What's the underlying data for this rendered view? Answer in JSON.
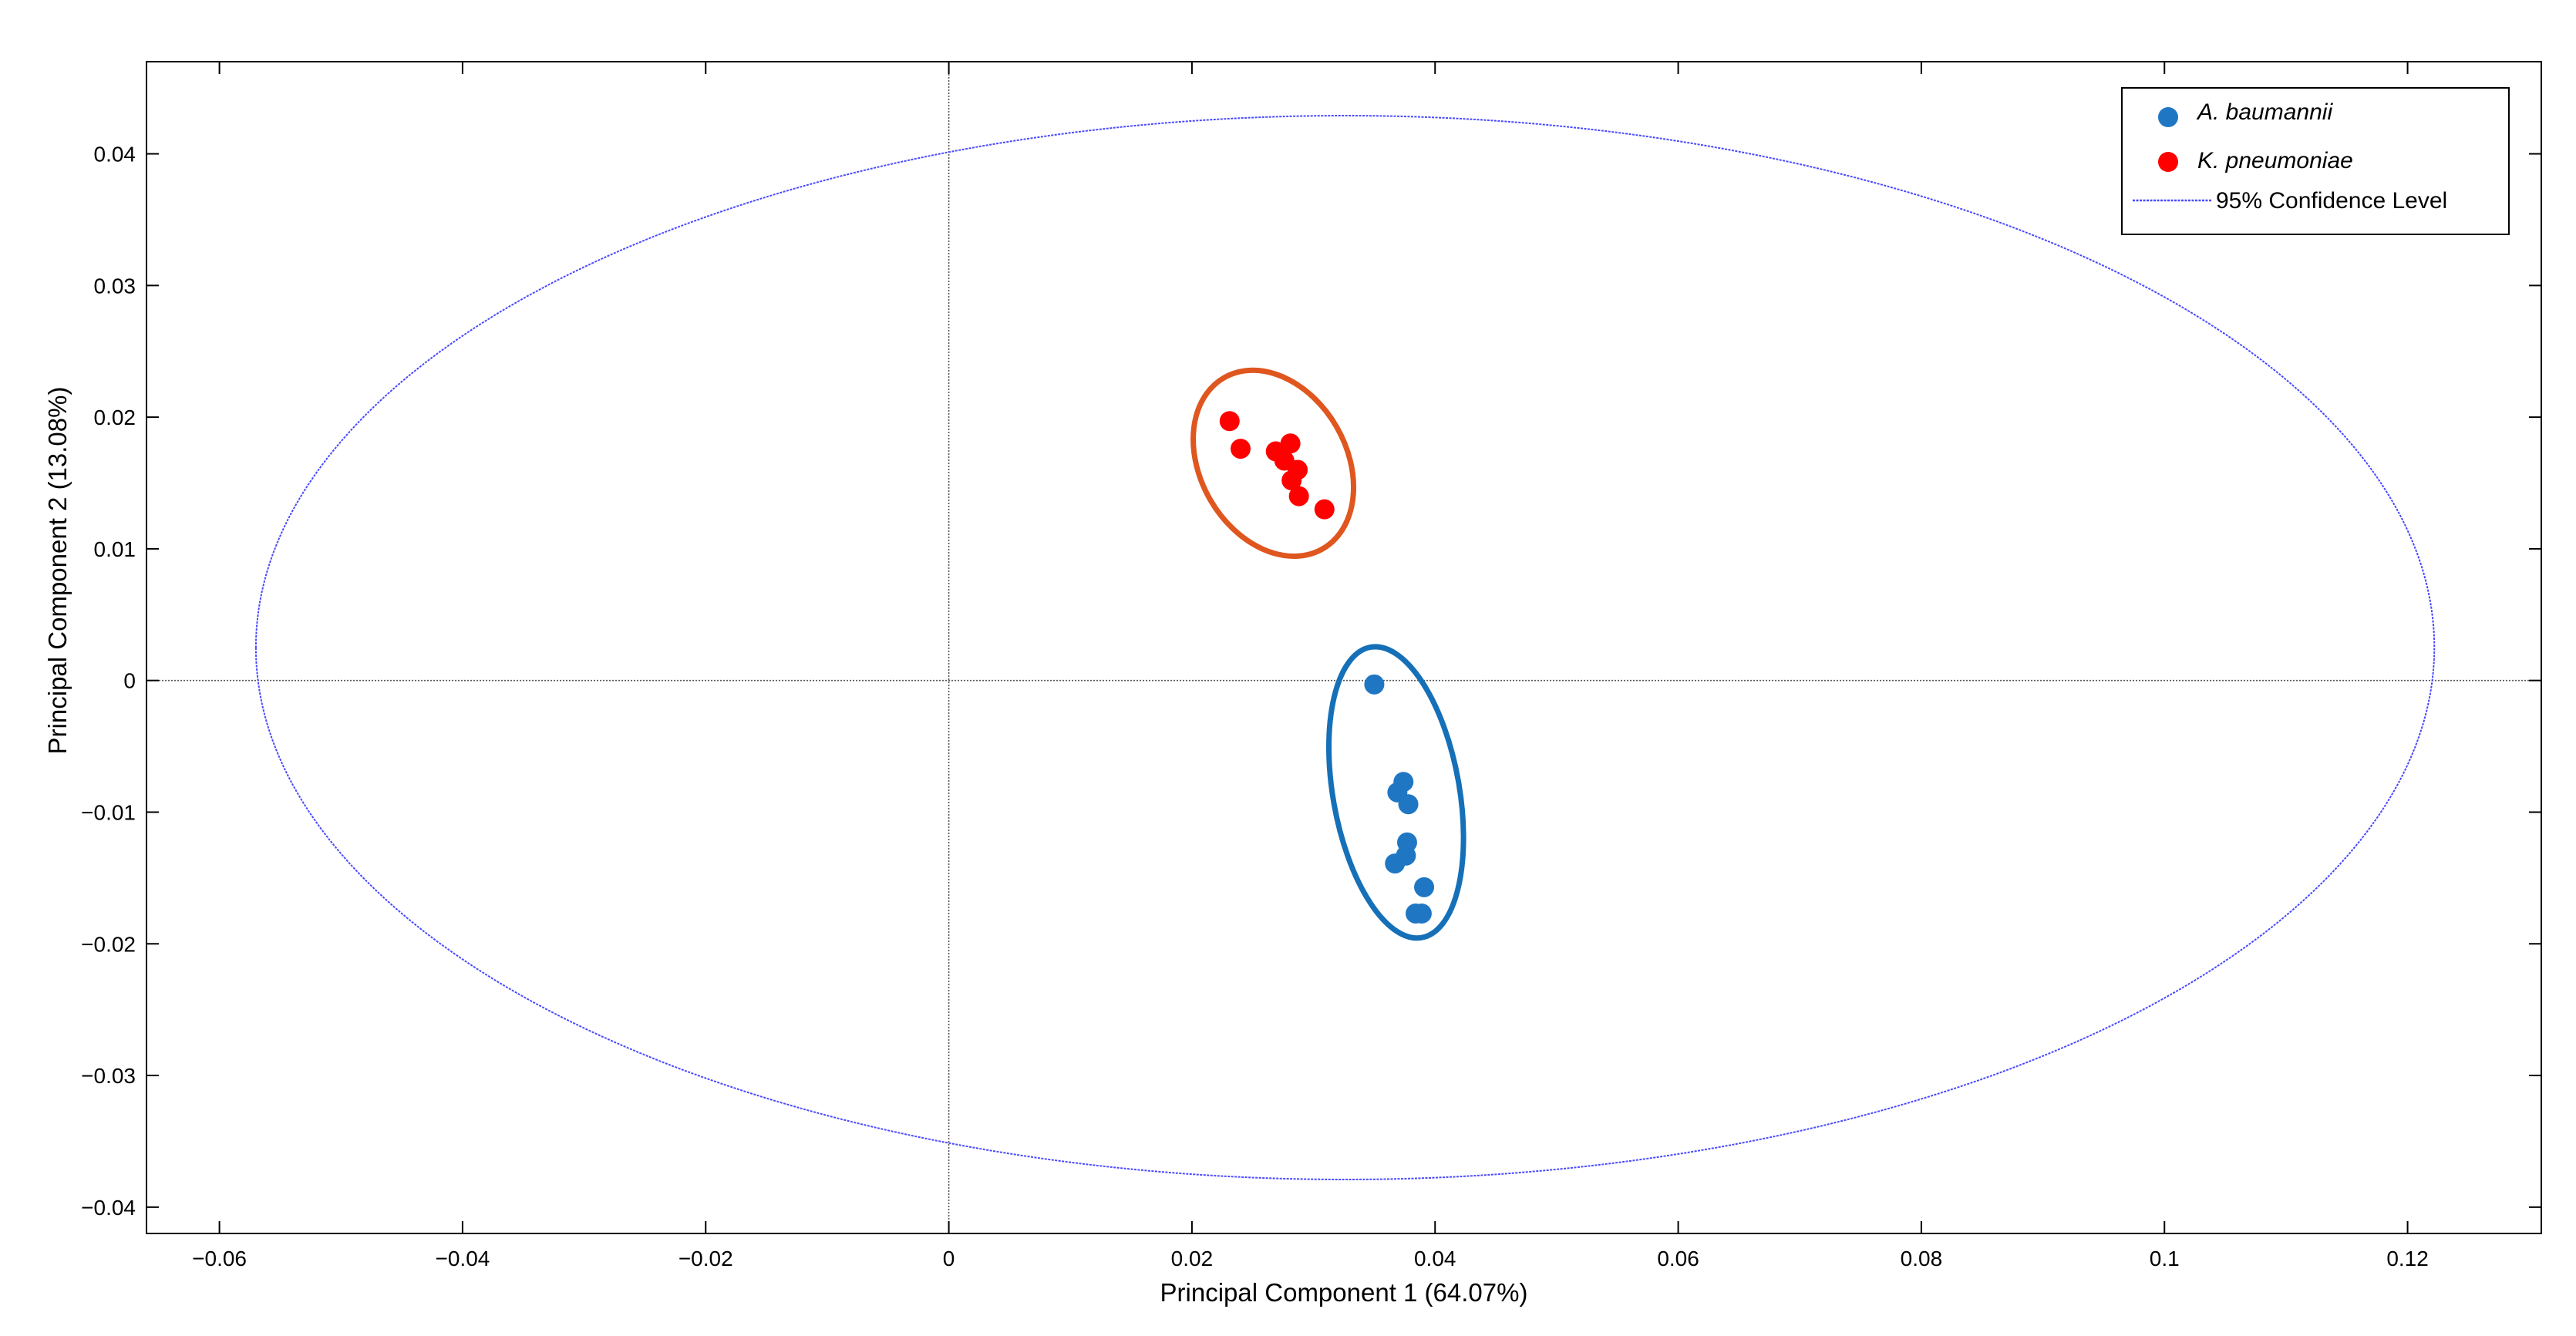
{
  "chart_data": {
    "type": "scatter",
    "title": "",
    "xlabel": "Principal Component 1 (64.07%)",
    "ylabel": "Principal Component 2 (13.08%)",
    "xlim": [
      -0.066,
      0.131
    ],
    "ylim": [
      -0.042,
      0.047
    ],
    "x_ticks": [
      {
        "value": -0.06,
        "label": "−0.06"
      },
      {
        "value": -0.04,
        "label": "−0.04"
      },
      {
        "value": -0.02,
        "label": "−0.02"
      },
      {
        "value": 0,
        "label": "0"
      },
      {
        "value": 0.02,
        "label": "0.02"
      },
      {
        "value": 0.04,
        "label": "0.04"
      },
      {
        "value": 0.06,
        "label": "0.06"
      },
      {
        "value": 0.08,
        "label": "0.08"
      },
      {
        "value": 0.1,
        "label": "0.1"
      },
      {
        "value": 0.12,
        "label": "0.12"
      }
    ],
    "y_ticks": [
      {
        "value": 0.04,
        "label": "0.04"
      },
      {
        "value": 0.03,
        "label": "0.03"
      },
      {
        "value": 0.02,
        "label": "0.02"
      },
      {
        "value": 0.01,
        "label": "0.01"
      },
      {
        "value": 0,
        "label": "0"
      },
      {
        "value": -0.01,
        "label": "−0.01"
      },
      {
        "value": -0.02,
        "label": "−0.02"
      },
      {
        "value": -0.03,
        "label": "−0.03"
      },
      {
        "value": -0.04,
        "label": "−0.04"
      }
    ],
    "grid": false,
    "zero_lines": true,
    "legend_position": "top-right",
    "series": [
      {
        "name": "A. baumannii",
        "color": "#1f77c4",
        "marker": "circle",
        "points": [
          {
            "x": 0.035,
            "y": -0.0003
          },
          {
            "x": 0.0374,
            "y": -0.0077
          },
          {
            "x": 0.0369,
            "y": -0.0085
          },
          {
            "x": 0.0378,
            "y": -0.0094
          },
          {
            "x": 0.0377,
            "y": -0.0123
          },
          {
            "x": 0.0376,
            "y": -0.0133
          },
          {
            "x": 0.0367,
            "y": -0.0139
          },
          {
            "x": 0.0391,
            "y": -0.0157
          },
          {
            "x": 0.0384,
            "y": -0.0177
          },
          {
            "x": 0.0389,
            "y": -0.0177
          }
        ]
      },
      {
        "name": "K. pneumoniae",
        "color": "#ff0000",
        "marker": "circle",
        "points": [
          {
            "x": 0.0231,
            "y": 0.0197
          },
          {
            "x": 0.024,
            "y": 0.0176
          },
          {
            "x": 0.0269,
            "y": 0.0174
          },
          {
            "x": 0.0281,
            "y": 0.018
          },
          {
            "x": 0.0276,
            "y": 0.0167
          },
          {
            "x": 0.0287,
            "y": 0.016
          },
          {
            "x": 0.0282,
            "y": 0.0152
          },
          {
            "x": 0.0288,
            "y": 0.014
          },
          {
            "x": 0.0309,
            "y": 0.013
          }
        ]
      }
    ],
    "confidence_ellipse": {
      "name": "95% Confidence Level",
      "color": "#4a4aff",
      "center": {
        "x": 0.0326,
        "y": 0.0025
      },
      "semi_axis_x": 0.0896,
      "semi_axis_y": 0.0404
    },
    "group_ellipses": [
      {
        "group": "K. pneumoniae",
        "color": "#e0561f",
        "center": {
          "x": 0.0267,
          "y": 0.0165
        },
        "semi_axis_x": 0.006,
        "semi_axis_y": 0.0075,
        "tilt_deg": -30
      },
      {
        "group": "A. baumannii",
        "color": "#1570b8",
        "center": {
          "x": 0.0368,
          "y": -0.0085
        },
        "semi_axis_x": 0.0052,
        "semi_axis_y": 0.0112,
        "tilt_deg": -10
      }
    ],
    "legend": {
      "entries": [
        {
          "label": "A. baumannii",
          "color": "#1f77c4",
          "symbol": "dot",
          "italic": true
        },
        {
          "label": "K. pneumoniae",
          "color": "#ff0000",
          "symbol": "dot",
          "italic": true
        },
        {
          "label": "95% Confidence Level",
          "color": "#4a4aff",
          "symbol": "dotted-line",
          "italic": false
        }
      ]
    }
  }
}
